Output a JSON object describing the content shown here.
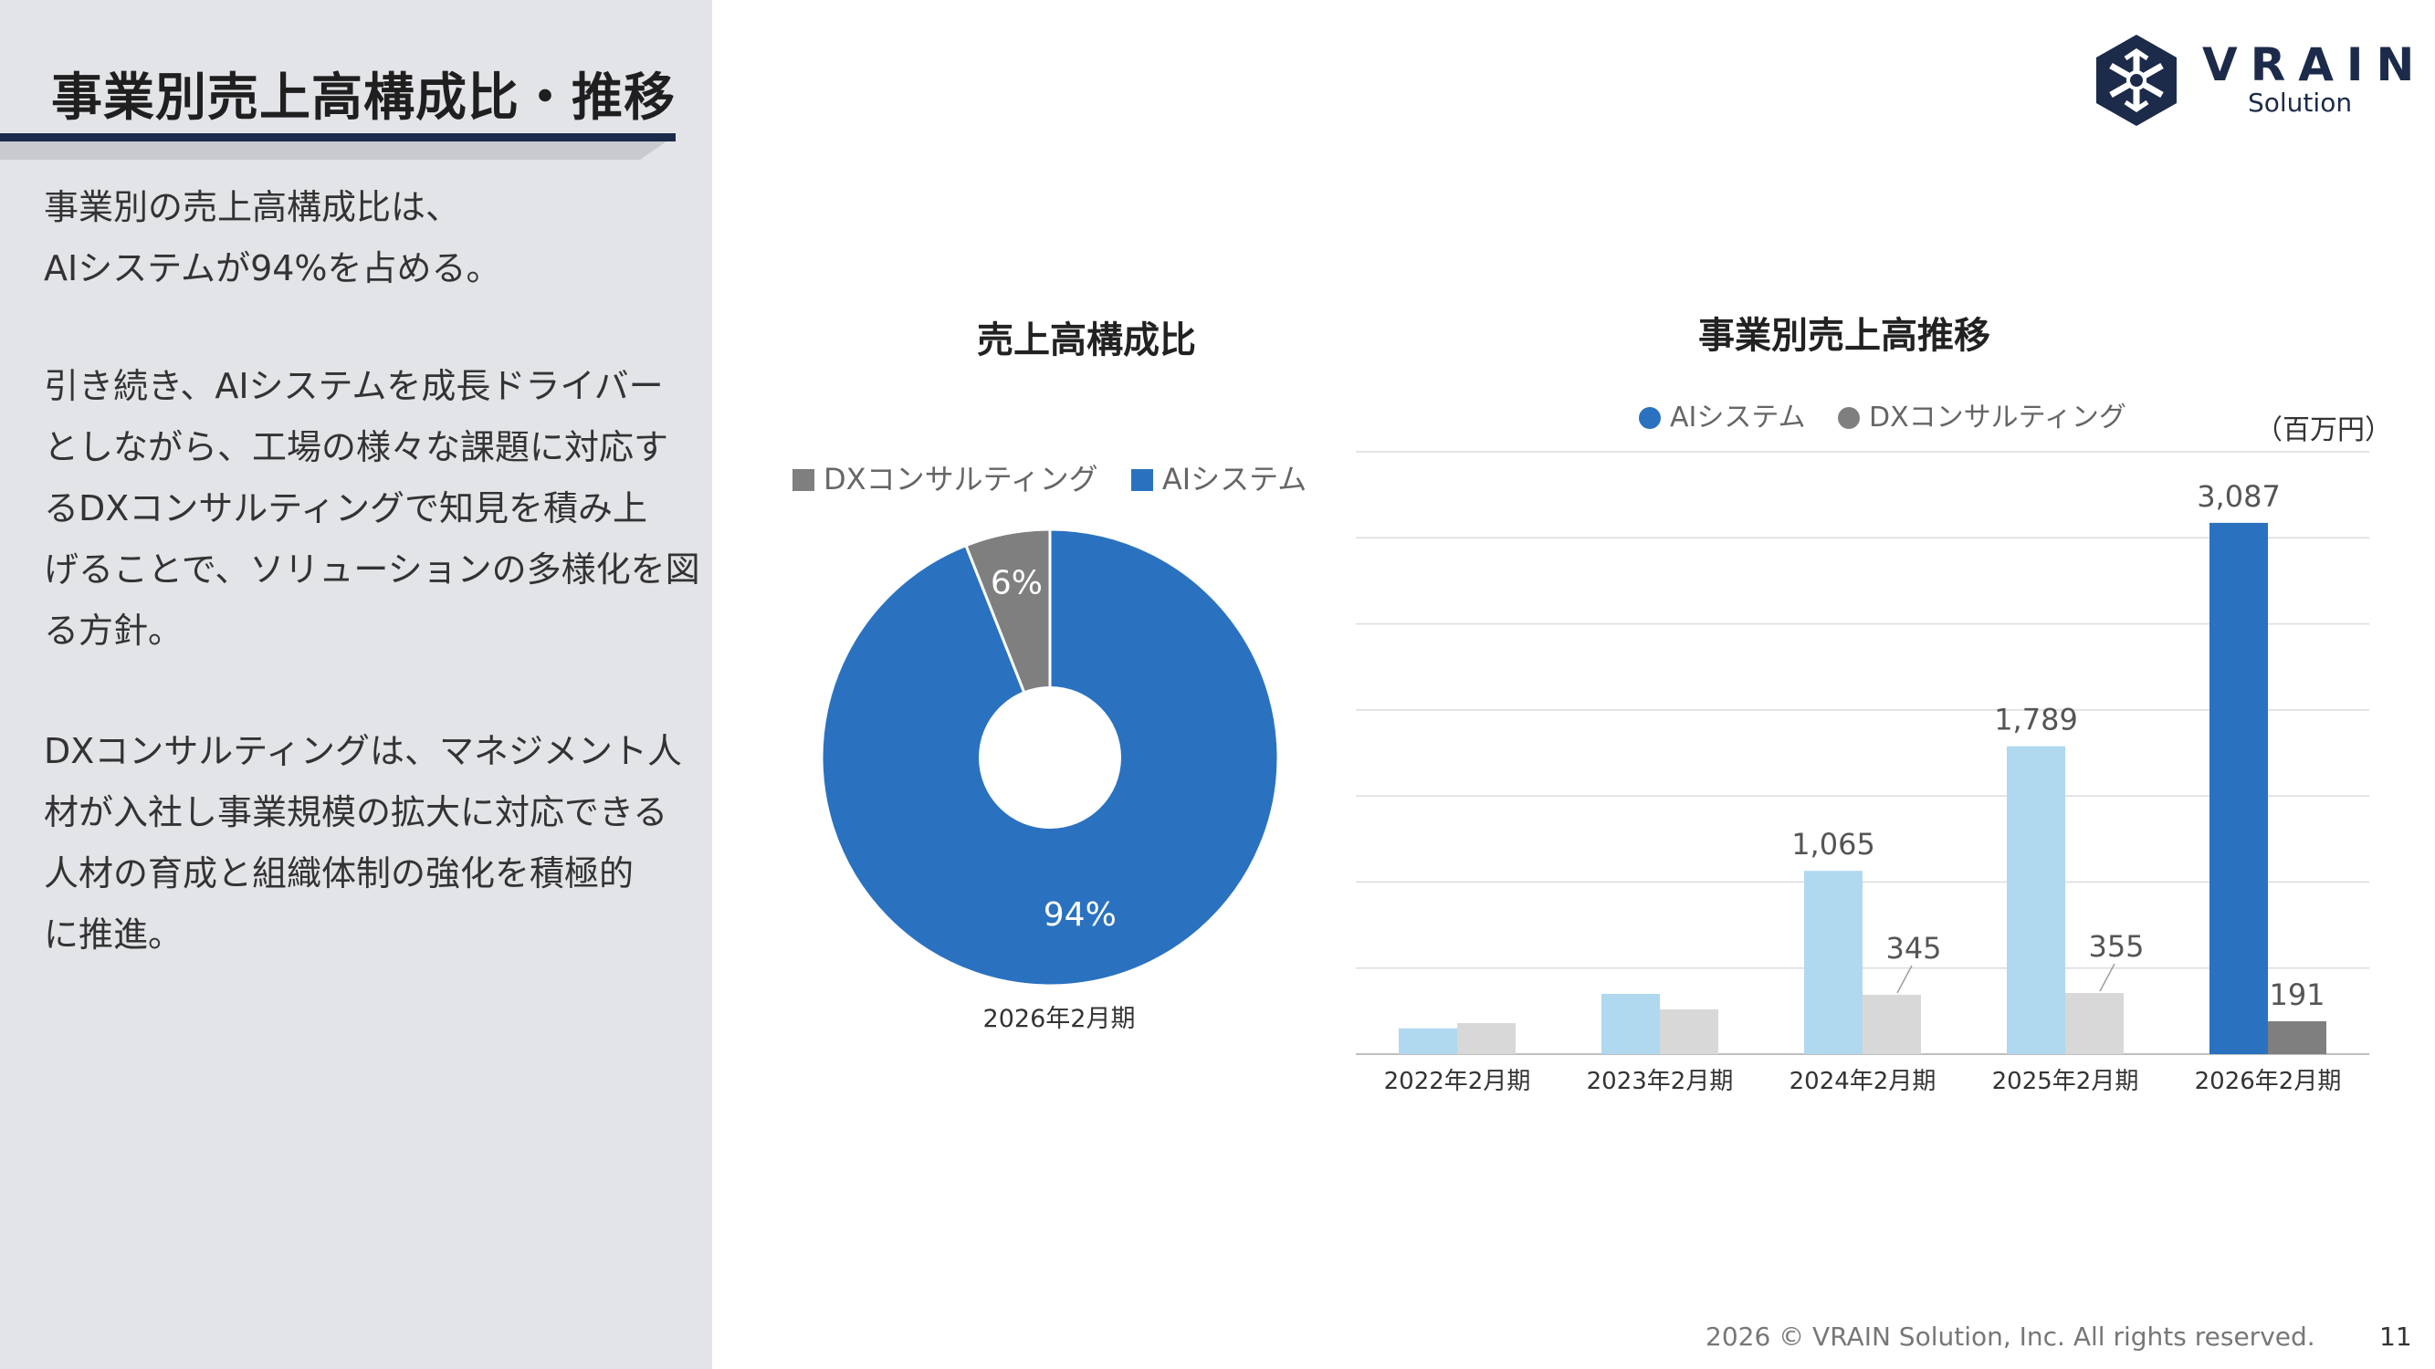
{
  "page": {
    "title": "事業別売上高構成比・推移",
    "body_paragraphs": [
      [
        "事業別の売上高構成比は、",
        "AIシステムが94%を占める。"
      ],
      [
        "引き続き、AIシステムを成長ドライバー",
        "としながら、工場の様々な課題に対応す",
        "るDXコンサルティングで知見を積み上",
        "げることで、ソリューションの多様化を図",
        "る方針。"
      ],
      [
        "DXコンサルティングは、マネジメント人",
        "材が入社し事業規模の拡大に対応できる",
        "人材の育成と組織体制の強化を積極的",
        "に推進。"
      ]
    ],
    "logo": {
      "name": "VRAIN",
      "sub": "Solution"
    },
    "footer": "2026 © VRAIN Solution, Inc. All rights reserved.",
    "page_number": "11"
  },
  "colors": {
    "ai_dark": "#2a72c0",
    "ai_light": "#b0d8ef",
    "dx_dark": "#7f7f7f",
    "dx_light": "#d8d8d8",
    "navy": "#1c2b4a"
  },
  "chart_data": [
    {
      "type": "pie",
      "title": "売上高構成比",
      "caption": "2026年2月期",
      "legend": [
        "DXコンサルティング",
        "AIシステム"
      ],
      "slices": [
        {
          "name": "AIシステム",
          "value": 94,
          "label": "94%",
          "color": "#2a72c0"
        },
        {
          "name": "DXコンサルティング",
          "value": 6,
          "label": "6%",
          "color": "#7f7f7f"
        }
      ]
    },
    {
      "type": "bar",
      "title": "事業別売上高推移",
      "unit": "（百万円）",
      "legend_position": "top",
      "grid": true,
      "categories": [
        "2022年2月期",
        "2023年2月期",
        "2024年2月期",
        "2025年2月期",
        "2026年2月期"
      ],
      "ylim": [
        0,
        3500
      ],
      "series": [
        {
          "name": "AIシステム",
          "values": [
            150,
            350,
            1065,
            1789,
            3087
          ],
          "labels": [
            "",
            "",
            "1,065",
            "1,789",
            "3,087"
          ]
        },
        {
          "name": "DXコンサルティング",
          "values": [
            180,
            260,
            345,
            355,
            191
          ],
          "labels": [
            "",
            "",
            "345",
            "355",
            "191"
          ]
        }
      ]
    }
  ]
}
